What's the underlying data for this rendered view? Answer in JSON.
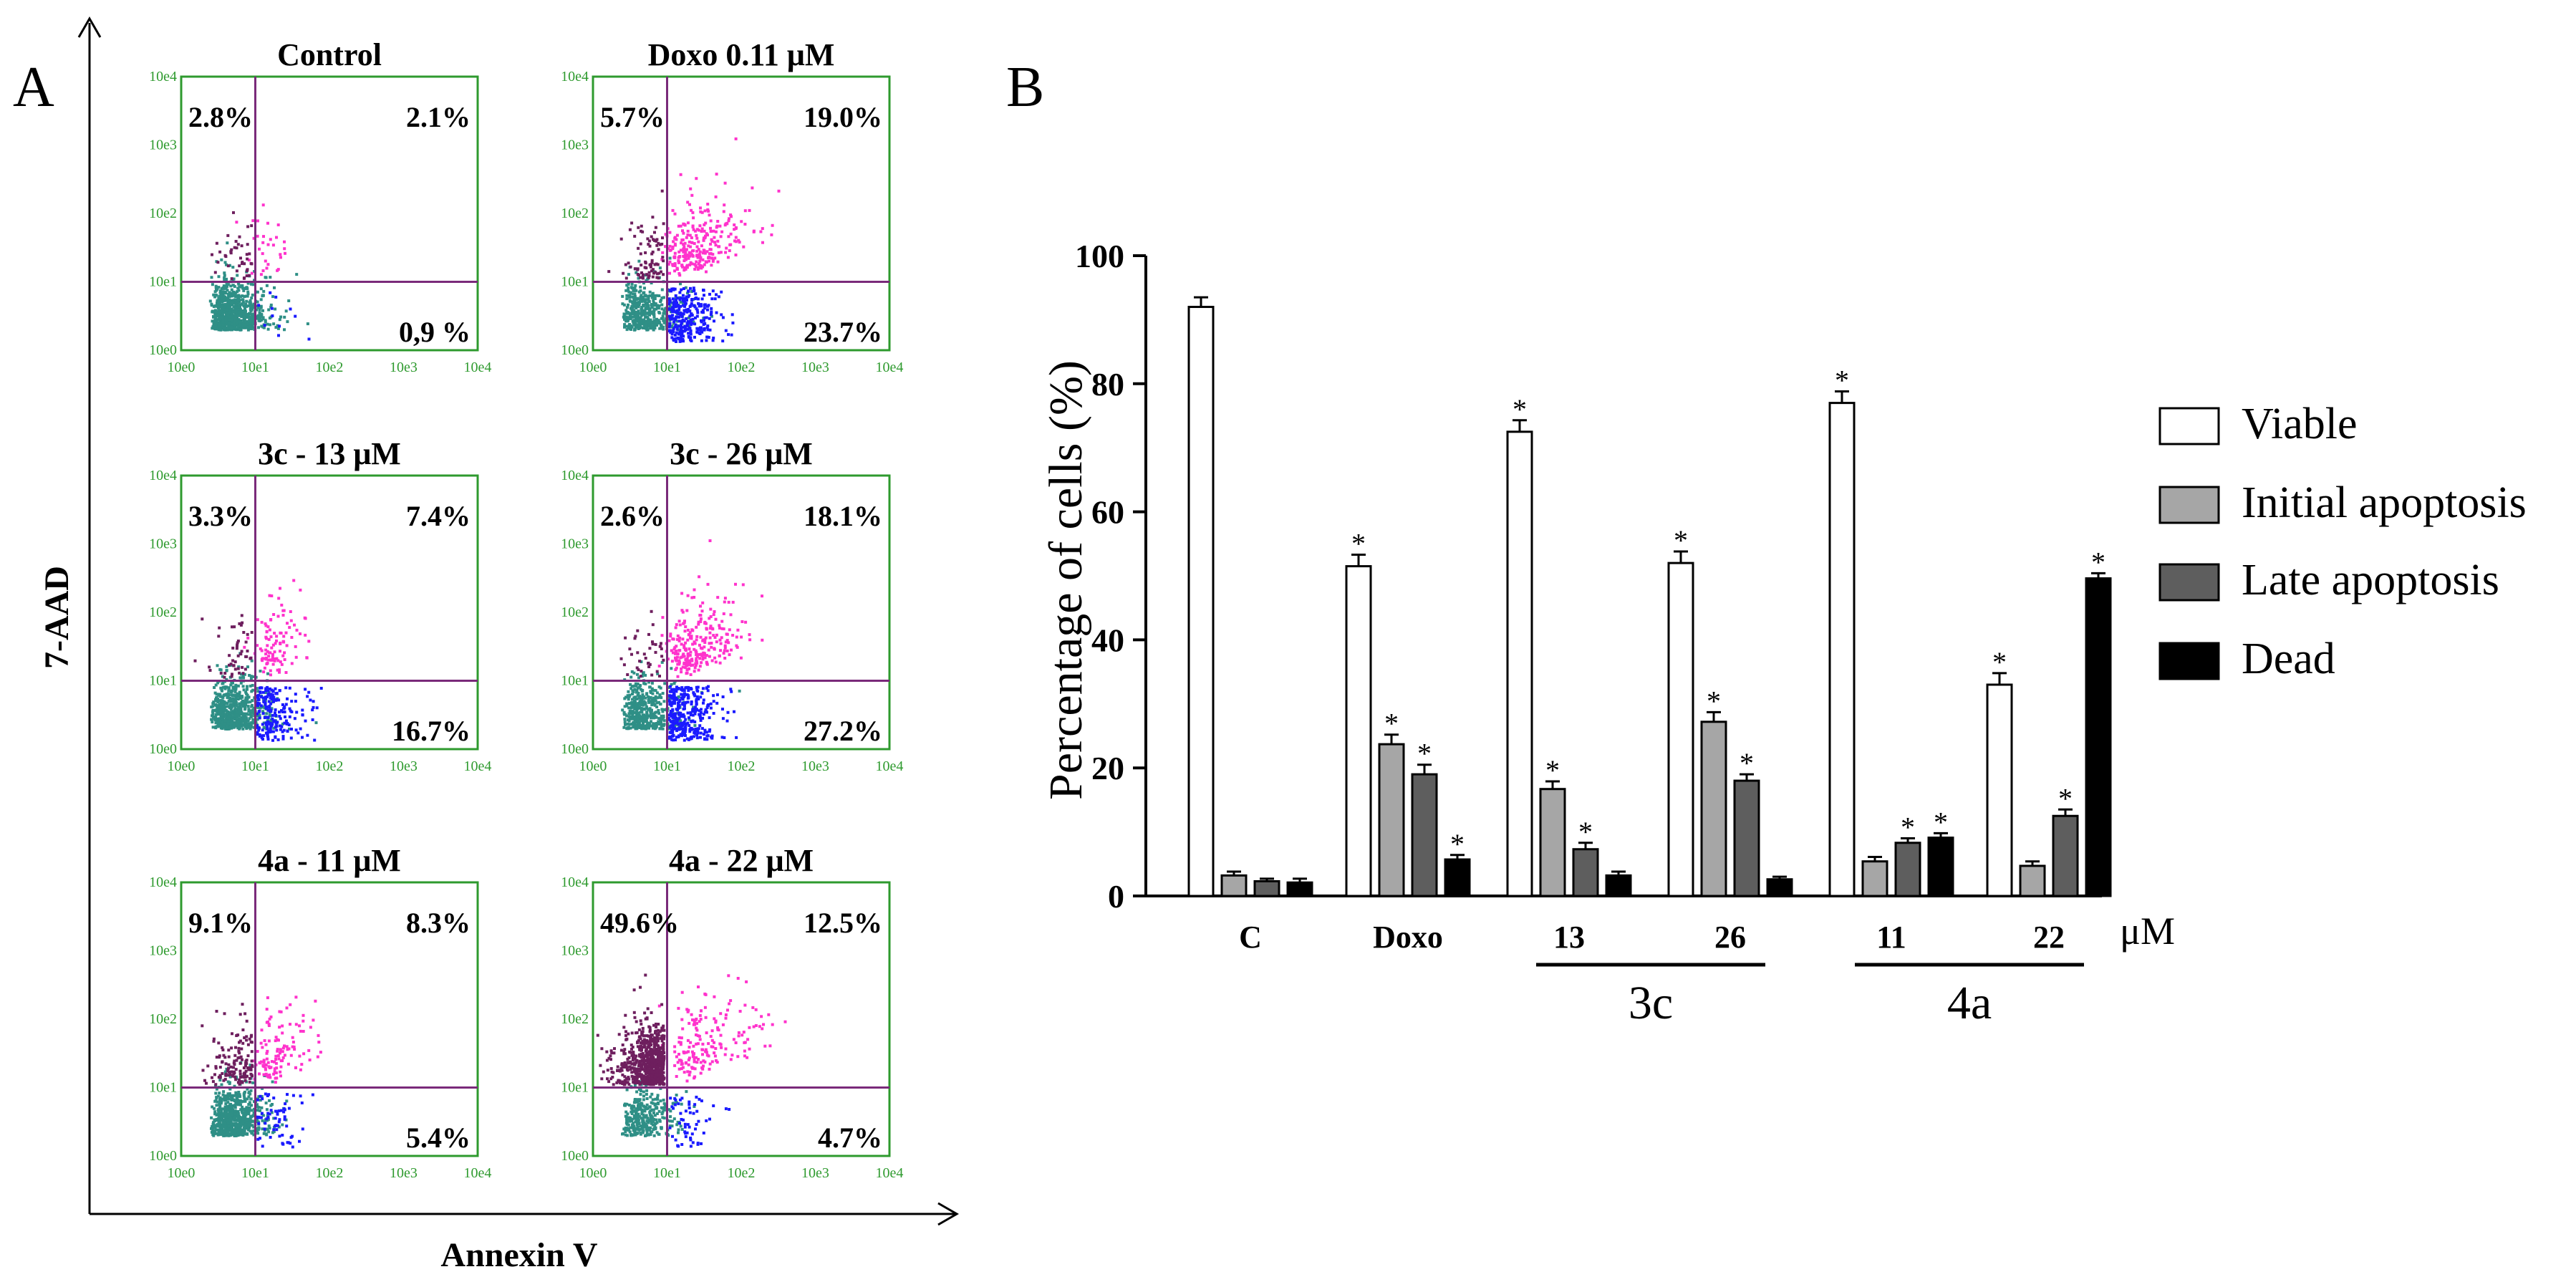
{
  "panels": {
    "a_label": "A",
    "b_label": "B"
  },
  "colors": {
    "box_border": "#2e9a2e",
    "tick_text": "#2e9a2e",
    "gate_line": "#7a2a7a",
    "live_cells": "#2f8f86",
    "early_apoptotic": "#1a1aff",
    "late_apoptotic": "#ff33cc",
    "necrotic": "#6e1f5e",
    "viable_fill": "#ffffff",
    "initial_fill": "#a6a6a6",
    "late_fill": "#5e5e5e",
    "dead_fill": "#000000"
  },
  "chart_data": [
    {
      "type": "scatter",
      "title": "Flow cytometry dot plots (Annexin V / 7-AAD)",
      "xlabel": "Annexin V",
      "ylabel": "7-AAD",
      "x_scale": "log",
      "y_scale": "log",
      "x_ticks": [
        "10e0",
        "10e1",
        "10e2",
        "10e3",
        "10e4"
      ],
      "y_ticks": [
        "10e0",
        "10e1",
        "10e2",
        "10e3",
        "10e4"
      ],
      "plots": [
        {
          "title": "Control",
          "upper_left": "2.8%",
          "upper_right": "2.1%",
          "lower_right": "0,9 %"
        },
        {
          "title": "Doxo 0.11 μM",
          "upper_left": "5.7%",
          "upper_right": "19.0%",
          "lower_right": "23.7%"
        },
        {
          "title": "3c - 13 μM",
          "upper_left": "3.3%",
          "upper_right": "7.4%",
          "lower_right": "16.7%"
        },
        {
          "title": "3c - 26 μM",
          "upper_left": "2.6%",
          "upper_right": "18.1%",
          "lower_right": "27.2%"
        },
        {
          "title": "4a - 11 μM",
          "upper_left": "9.1%",
          "upper_right": "8.3%",
          "lower_right": "5.4%"
        },
        {
          "title": "4a - 22 μM",
          "upper_left": "49.6%",
          "upper_right": "12.5%",
          "lower_right": "4.7%"
        }
      ]
    },
    {
      "type": "bar",
      "ylabel": "Percentage of cells (%)",
      "ylim": [
        0,
        100
      ],
      "yticks": [
        "0",
        "20",
        "40",
        "60",
        "80",
        "100"
      ],
      "categories": [
        "C",
        "Doxo",
        "13",
        "26",
        "11",
        "22"
      ],
      "unit_label": "μM",
      "groups": [
        {
          "label": "3c",
          "categories": [
            "13",
            "26"
          ]
        },
        {
          "label": "4a",
          "categories": [
            "11",
            "22"
          ]
        }
      ],
      "significance_marker": "*",
      "series": [
        {
          "name": "Viable",
          "values": [
            92,
            51.5,
            72.5,
            52,
            77,
            33
          ],
          "errors": [
            1.5,
            1.8,
            1.8,
            1.8,
            1.8,
            1.8
          ],
          "significant": [
            false,
            true,
            true,
            true,
            true,
            true
          ]
        },
        {
          "name": "Initial apoptosis",
          "values": [
            3.2,
            23.7,
            16.7,
            27.2,
            5.4,
            4.7
          ],
          "errors": [
            0.6,
            1.5,
            1.2,
            1.5,
            0.7,
            0.7
          ],
          "significant": [
            false,
            true,
            true,
            true,
            false,
            false
          ]
        },
        {
          "name": "Late apoptosis",
          "values": [
            2.3,
            19,
            7.3,
            18,
            8.3,
            12.5
          ],
          "errors": [
            0.4,
            1.5,
            1.0,
            1.0,
            0.7,
            1.0
          ],
          "significant": [
            false,
            true,
            true,
            true,
            true,
            true
          ]
        },
        {
          "name": "Dead",
          "values": [
            2.1,
            5.7,
            3.2,
            2.6,
            9.1,
            49.6
          ],
          "errors": [
            0.6,
            0.7,
            0.6,
            0.4,
            0.7,
            0.8
          ],
          "significant": [
            false,
            true,
            false,
            false,
            true,
            true
          ]
        }
      ]
    }
  ]
}
